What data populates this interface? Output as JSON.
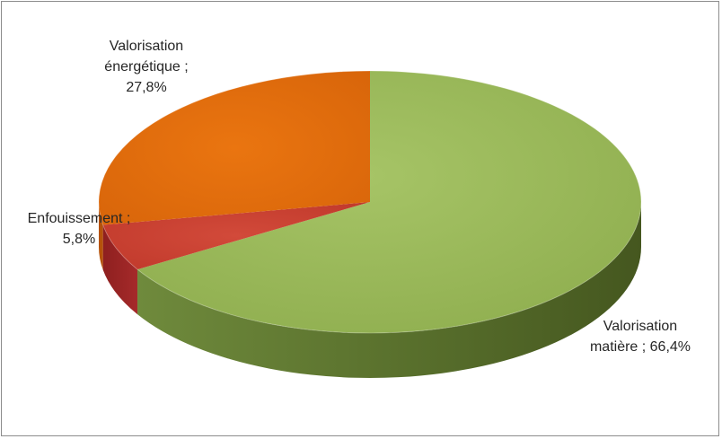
{
  "chart_data": {
    "type": "pie",
    "style": "3d",
    "title": "",
    "legend": "none",
    "slices": [
      {
        "label_lines": [
          "Valorisation",
          "matière ; 66,4%"
        ],
        "name": "Valorisation matière",
        "value": 66.4,
        "value_label": "66,4%",
        "color": "#9bbb59"
      },
      {
        "label_lines": [
          "Enfouissement ;",
          "5,8%"
        ],
        "name": "Enfouissement",
        "value": 5.8,
        "value_label": "5,8%",
        "color": "#c0392b"
      },
      {
        "label_lines": [
          "Valorisation",
          "énergétique ;",
          "27,8%"
        ],
        "name": "Valorisation énergétique",
        "value": 27.8,
        "value_label": "27,8%",
        "color": "#e46c0a"
      }
    ]
  }
}
